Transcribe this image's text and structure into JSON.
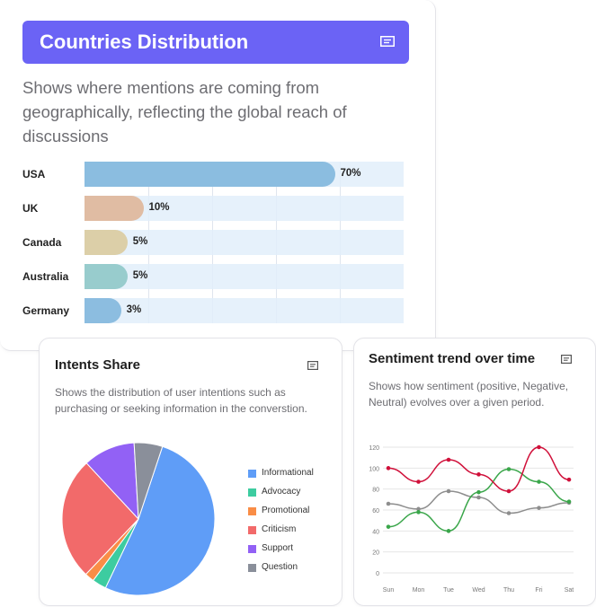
{
  "countries": {
    "title": "Countries Distribution",
    "description": "Shows where mentions are coming from geographically, reflecting the global reach of discussions",
    "icon": "note-icon",
    "chart_data": {
      "type": "bar",
      "categories": [
        "USA",
        "UK",
        "Canada",
        "Australia",
        "Germany"
      ],
      "values": [
        70,
        10,
        5,
        5,
        3
      ],
      "value_labels": [
        "70%",
        "10%",
        "5%",
        "5%",
        "3%"
      ],
      "colors": [
        "#8bbde0",
        "#e0bca3",
        "#dccfa8",
        "#98cccd",
        "#8cbde0"
      ],
      "orientation": "horizontal",
      "grid": true
    }
  },
  "intents": {
    "title": "Intents Share",
    "description": "Shows the distribution of user intentions such as purchasing or seeking information in the converstion.",
    "icon": "note-icon",
    "chart_data": {
      "type": "pie",
      "labels": [
        "Informational",
        "Advocacy",
        "Promotional",
        "Criticism",
        "Support",
        "Question"
      ],
      "values": [
        52,
        3,
        2,
        26,
        11,
        6
      ],
      "colors": [
        "#5f9df7",
        "#3dcca0",
        "#f98d46",
        "#f26a6a",
        "#9261f5",
        "#8a8f9a"
      ],
      "legend_position": "right"
    }
  },
  "sentiment": {
    "title": "Sentiment trend over time",
    "description": "Shows how sentiment (positive, Negative, Neutral) evolves over a given period.",
    "icon": "note-icon",
    "chart_data": {
      "type": "line",
      "x": [
        "Sun",
        "Mon",
        "Tue",
        "Wed",
        "Thu",
        "Fri",
        "Sat"
      ],
      "y_ticks": [
        "0",
        "20",
        "40",
        "60",
        "80",
        "100",
        "120"
      ],
      "ylim": [
        0,
        120
      ],
      "series": [
        {
          "values": [
            100,
            87,
            108,
            94,
            78,
            120,
            89
          ],
          "color": "#d0103a"
        },
        {
          "values": [
            44,
            58,
            40,
            77,
            99,
            87,
            68
          ],
          "color": "#3aa64a"
        },
        {
          "values": [
            66,
            61,
            78,
            72,
            57,
            62,
            67
          ],
          "color": "#8e8e8e"
        }
      ],
      "grid": true,
      "smooth": true
    }
  }
}
